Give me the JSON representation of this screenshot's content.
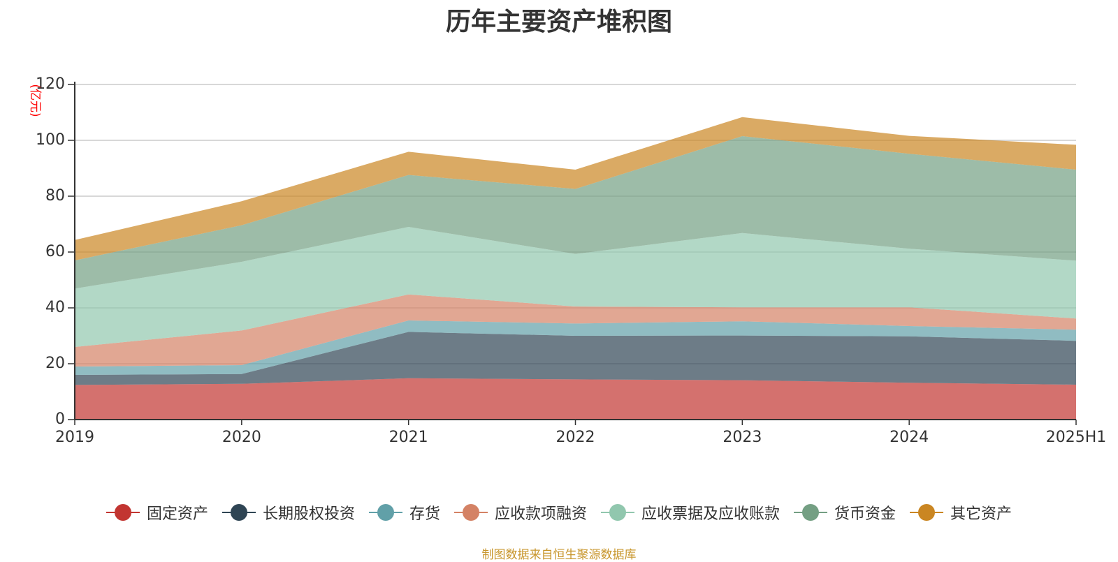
{
  "chart_data": {
    "type": "area",
    "stacked": true,
    "title": "历年主要资产堆积图",
    "ylabel": "(亿元)",
    "xlabel": "",
    "categories": [
      "2019",
      "2020",
      "2021",
      "2022",
      "2023",
      "2024",
      "2025H1"
    ],
    "ylim": [
      0,
      120
    ],
    "yticks": [
      0,
      20,
      40,
      60,
      80,
      100,
      120
    ],
    "grid": true,
    "legend_position": "bottom",
    "series": [
      {
        "name": "固定资产",
        "color": "#c23531",
        "values": [
          12.4,
          12.8,
          14.8,
          14.4,
          14.1,
          13.2,
          12.5
        ]
      },
      {
        "name": "长期股权投资",
        "color": "#2f4554",
        "values": [
          3.6,
          3.5,
          16.6,
          15.6,
          16.0,
          16.6,
          15.7
        ]
      },
      {
        "name": "存货",
        "color": "#61a0a8",
        "values": [
          3.0,
          3.2,
          4.1,
          4.4,
          5.1,
          3.7,
          4.0
        ]
      },
      {
        "name": "应收款项融资",
        "color": "#d48265",
        "values": [
          7.0,
          12.4,
          9.3,
          6.1,
          5.0,
          6.7,
          4.0
        ]
      },
      {
        "name": "应收票据及应收账款",
        "color": "#91c7ae",
        "values": [
          20.9,
          24.6,
          24.2,
          18.8,
          26.6,
          21.0,
          20.7
        ]
      },
      {
        "name": "货币资金",
        "color": "#749f83",
        "values": [
          10.1,
          13.1,
          18.6,
          23.3,
          34.7,
          34.0,
          32.6
        ]
      },
      {
        "name": "其它资产",
        "color": "#ca8622",
        "values": [
          7.3,
          8.6,
          8.3,
          6.9,
          6.8,
          6.4,
          8.9
        ]
      }
    ],
    "fill_opacity": 0.7
  },
  "source_note": "制图数据来自恒生聚源数据库"
}
